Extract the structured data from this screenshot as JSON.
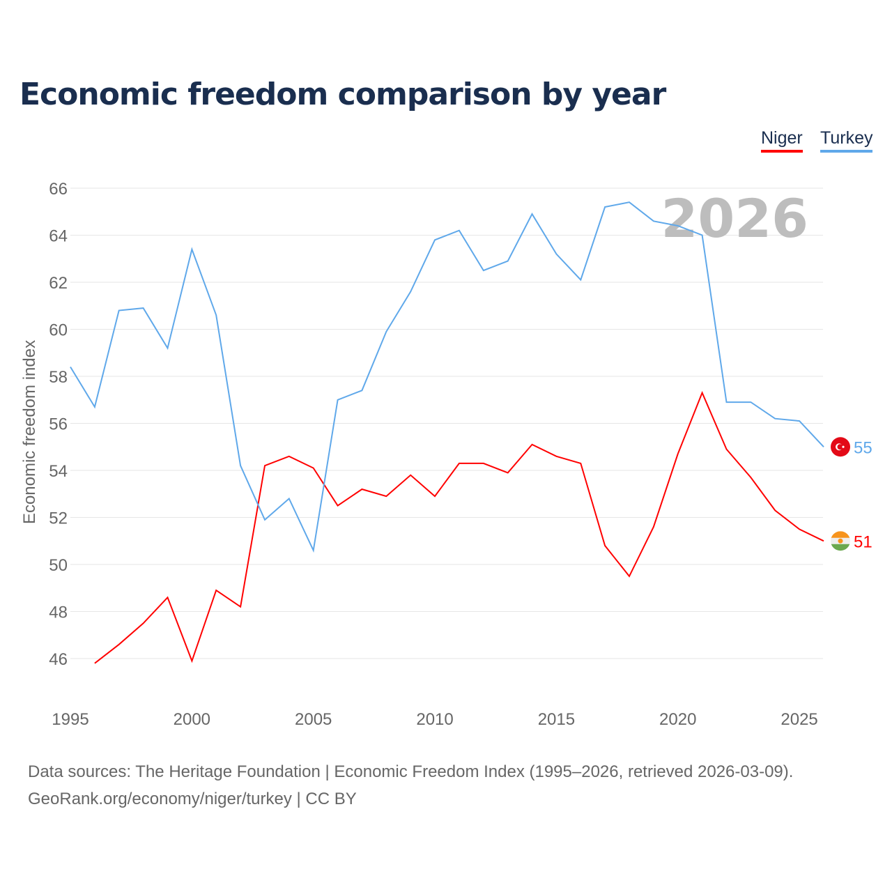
{
  "title": "Economic freedom comparison by year",
  "legend": [
    "Niger",
    "Turkey"
  ],
  "source_line1": "Data sources: The Heritage Foundation | Economic Freedom Index (1995–2026, retrieved 2026-03-09).",
  "source_line2": "GeoRank.org/economy/niger/turkey | CC BY",
  "chart_data": {
    "type": "line",
    "title": "Economic freedom comparison by year",
    "ylabel": "Economic freedom index",
    "xlabel": "",
    "year_watermark": "2026",
    "xlim": [
      1995,
      2026
    ],
    "ylim": [
      44.5,
      66
    ],
    "xticks": [
      1995,
      2000,
      2005,
      2010,
      2015,
      2020,
      2025
    ],
    "yticks": [
      46,
      48,
      50,
      52,
      54,
      56,
      58,
      60,
      62,
      64,
      66
    ],
    "grid": true,
    "legend_position": "top-right",
    "series": [
      {
        "name": "Niger",
        "color": "#ff0000",
        "end_label": "51",
        "flag": "niger-flag",
        "x": [
          1996,
          1997,
          1998,
          1999,
          2000,
          2001,
          2002,
          2003,
          2004,
          2005,
          2006,
          2007,
          2008,
          2009,
          2010,
          2011,
          2012,
          2013,
          2014,
          2015,
          2016,
          2017,
          2018,
          2019,
          2020,
          2021,
          2022,
          2023,
          2024,
          2025,
          2026
        ],
        "values": [
          45.8,
          46.6,
          47.5,
          48.6,
          45.9,
          48.9,
          48.2,
          54.2,
          54.6,
          54.1,
          52.5,
          53.2,
          52.9,
          53.8,
          52.9,
          54.3,
          54.3,
          53.9,
          55.1,
          54.6,
          54.3,
          50.8,
          49.5,
          51.6,
          54.7,
          57.3,
          54.9,
          53.7,
          52.3,
          51.5,
          51.0
        ]
      },
      {
        "name": "Turkey",
        "color": "#5fa8ea",
        "end_label": "55",
        "flag": "turkey-flag",
        "x": [
          1995,
          1996,
          1997,
          1998,
          1999,
          2000,
          2001,
          2002,
          2003,
          2004,
          2005,
          2006,
          2007,
          2008,
          2009,
          2010,
          2011,
          2012,
          2013,
          2014,
          2015,
          2016,
          2017,
          2018,
          2019,
          2020,
          2021,
          2022,
          2023,
          2024,
          2025,
          2026
        ],
        "values": [
          58.4,
          56.7,
          60.8,
          60.9,
          59.2,
          63.4,
          60.6,
          54.2,
          51.9,
          52.8,
          50.6,
          57.0,
          57.4,
          59.9,
          61.6,
          63.8,
          64.2,
          62.5,
          62.9,
          64.9,
          63.2,
          62.1,
          65.2,
          65.4,
          64.6,
          64.4,
          64.0,
          56.9,
          56.9,
          56.2,
          56.1,
          55.0
        ]
      }
    ]
  }
}
